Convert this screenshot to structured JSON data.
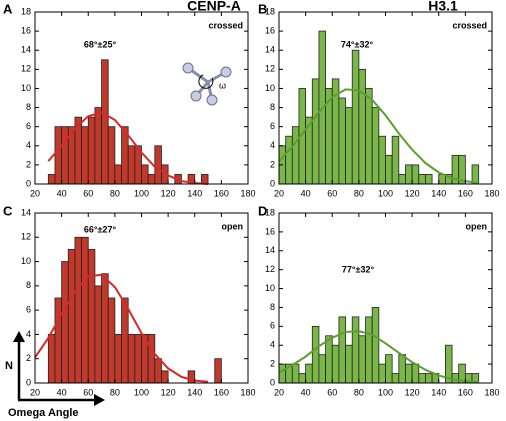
{
  "column_titles": [
    {
      "text": "CENP-A",
      "color": "#b8282e"
    },
    {
      "text": "H3.1",
      "color": "#6aaa3a"
    }
  ],
  "axis_labels": {
    "y": "N",
    "x": "Omega Angle"
  },
  "inset_label": "ω",
  "chart_data": [
    {
      "type": "histogram",
      "panel": "A",
      "annotation": "68°±25°",
      "state": "crossed",
      "color": "#c0392b",
      "text_color": "#b8282e",
      "bins": [
        30,
        35,
        40,
        45,
        50,
        55,
        60,
        65,
        70,
        75,
        80,
        85,
        90,
        95,
        100,
        105,
        110,
        115,
        120,
        125,
        130,
        135,
        140,
        145,
        150
      ],
      "values": [
        1,
        6,
        6,
        6,
        7,
        6,
        7,
        8,
        13,
        6,
        2,
        6,
        4,
        4,
        2,
        1,
        4,
        2,
        0,
        1,
        0,
        1,
        0,
        1
      ],
      "fit": {
        "color": "#d42a2a",
        "x": [
          30,
          40,
          50,
          60,
          70,
          80,
          90,
          100,
          110,
          120,
          130,
          140,
          150
        ],
        "values": [
          2.4,
          4.0,
          5.8,
          7.1,
          7.5,
          6.7,
          5.1,
          3.3,
          1.8,
          0.9,
          0.3,
          0.1,
          0.0
        ]
      },
      "xlim": [
        20,
        180
      ],
      "xticks": [
        20,
        40,
        60,
        80,
        100,
        120,
        140,
        160,
        180
      ],
      "ylim": [
        0,
        18
      ],
      "yticks": [
        0,
        2,
        4,
        6,
        8,
        10,
        12,
        14,
        16,
        18
      ]
    },
    {
      "type": "histogram",
      "panel": "B",
      "annotation": "74°±32°",
      "state": "crossed",
      "color": "#7ab648",
      "text_color": "#6aaa3a",
      "bins": [
        20,
        25,
        30,
        35,
        40,
        45,
        50,
        55,
        60,
        65,
        70,
        75,
        80,
        85,
        90,
        95,
        100,
        105,
        110,
        115,
        120,
        125,
        130,
        135,
        140,
        145,
        150,
        155,
        160,
        165,
        170
      ],
      "values": [
        4,
        5,
        6,
        10,
        7,
        11,
        16,
        10,
        11,
        9,
        8,
        14,
        12,
        10,
        8,
        5,
        3,
        5,
        1,
        2,
        2,
        1,
        1,
        0,
        1,
        1,
        3,
        3,
        0,
        2
      ],
      "fit": {
        "color": "#5aa02c",
        "x": [
          20,
          30,
          40,
          50,
          60,
          70,
          80,
          90,
          100,
          110,
          120,
          130,
          140,
          150,
          160,
          170
        ],
        "values": [
          2.4,
          3.9,
          5.7,
          7.5,
          9.1,
          9.9,
          9.8,
          8.8,
          7.2,
          5.3,
          3.6,
          2.2,
          1.2,
          0.6,
          0.3,
          0.1
        ]
      },
      "xlim": [
        20,
        180
      ],
      "xticks": [
        20,
        40,
        60,
        80,
        100,
        120,
        140,
        160,
        180
      ],
      "ylim": [
        0,
        18
      ],
      "yticks": [
        0,
        2,
        4,
        6,
        8,
        10,
        12,
        14,
        16,
        18
      ]
    },
    {
      "type": "histogram",
      "panel": "C",
      "annotation": "66°±27°",
      "state": "open",
      "color": "#c0392b",
      "text_color": "#b8282e",
      "bins": [
        30,
        35,
        40,
        45,
        50,
        55,
        60,
        65,
        70,
        75,
        80,
        85,
        90,
        95,
        100,
        105,
        110,
        115,
        120,
        125,
        130,
        135,
        140,
        145,
        150,
        155,
        160
      ],
      "values": [
        4,
        7,
        10,
        11,
        12,
        12,
        11,
        8,
        9,
        7,
        4,
        7,
        4,
        4,
        4,
        4,
        2,
        1,
        0,
        0,
        0,
        1,
        0,
        0,
        0,
        2
      ],
      "fit": {
        "color": "#d42a2a",
        "x": [
          20,
          30,
          40,
          50,
          60,
          70,
          80,
          90,
          100,
          110,
          120,
          130,
          140,
          150
        ],
        "values": [
          2.1,
          3.7,
          5.7,
          7.5,
          8.8,
          8.9,
          7.9,
          6.1,
          4.1,
          2.4,
          1.2,
          0.5,
          0.2,
          0.1
        ]
      },
      "xlim": [
        20,
        180
      ],
      "xticks": [
        20,
        40,
        60,
        80,
        100,
        120,
        140,
        160,
        180
      ],
      "ylim": [
        0,
        14
      ],
      "yticks": [
        0,
        2,
        4,
        6,
        8,
        10,
        12,
        14
      ]
    },
    {
      "type": "histogram",
      "panel": "D",
      "annotation": "77°±32°",
      "state": "open",
      "color": "#7ab648",
      "text_color": "#6aaa3a",
      "bins": [
        20,
        25,
        30,
        35,
        40,
        45,
        50,
        55,
        60,
        65,
        70,
        75,
        80,
        85,
        90,
        95,
        100,
        105,
        110,
        115,
        120,
        125,
        130,
        135,
        140,
        145,
        150,
        155,
        160,
        165,
        170
      ],
      "values": [
        2,
        2,
        2,
        1,
        2,
        6,
        3,
        5,
        4,
        7,
        4,
        7,
        5,
        7,
        8,
        2,
        3,
        1,
        3,
        2,
        2,
        1,
        1,
        1,
        0,
        4,
        1,
        2,
        1,
        1
      ],
      "fit": {
        "color": "#5aa02c",
        "x": [
          20,
          30,
          40,
          50,
          60,
          70,
          80,
          90,
          100,
          110,
          120,
          130,
          140,
          150,
          160,
          170
        ],
        "values": [
          1.1,
          1.9,
          2.8,
          3.9,
          4.8,
          5.4,
          5.5,
          5.1,
          4.2,
          3.2,
          2.2,
          1.4,
          0.8,
          0.4,
          0.2,
          0.1
        ]
      },
      "xlim": [
        20,
        180
      ],
      "xticks": [
        20,
        40,
        60,
        80,
        100,
        120,
        140,
        160,
        180
      ],
      "ylim": [
        0,
        18
      ],
      "yticks": [
        0,
        2,
        4,
        6,
        8,
        10,
        12,
        14,
        16,
        18
      ]
    }
  ]
}
